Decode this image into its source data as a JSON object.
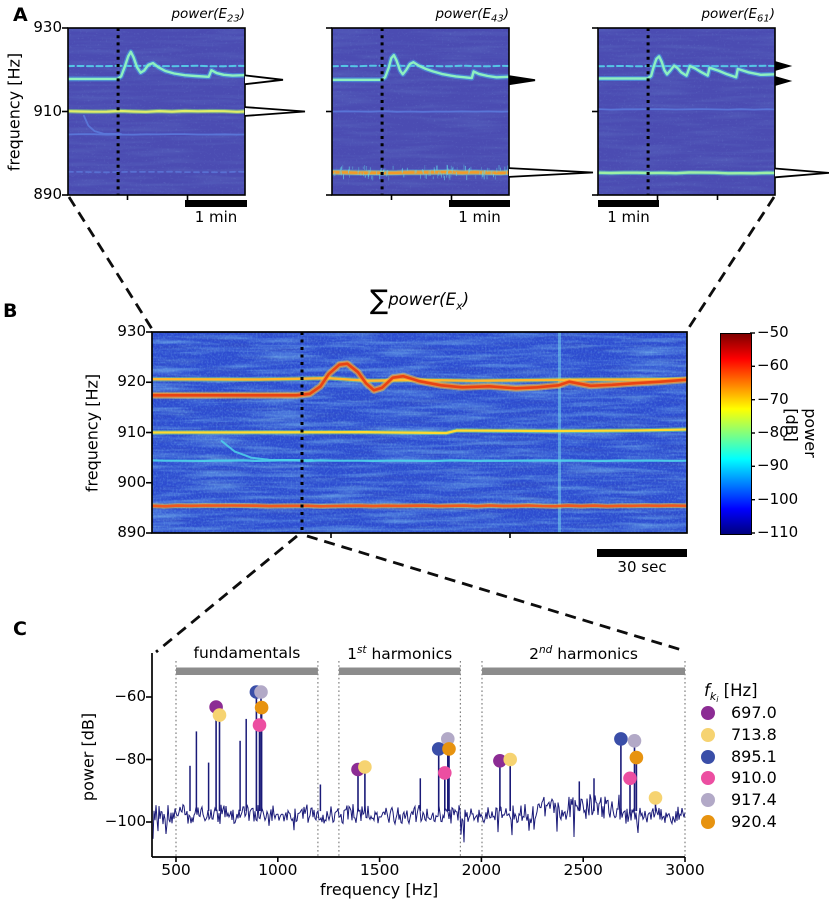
{
  "figure": {
    "panel_labels": {
      "a": "A",
      "b": "B",
      "c": "C"
    }
  },
  "panel_a": {
    "ylabel": "frequency [Hz]",
    "yticks": [
      "930",
      "910",
      "890"
    ],
    "scalebar_label": "1 min",
    "plots": [
      {
        "title_pre": "power(E",
        "title_sub": "23",
        "title_post": ")"
      },
      {
        "title_pre": "power(E",
        "title_sub": "43",
        "title_post": ")"
      },
      {
        "title_pre": "power(E",
        "title_sub": "61",
        "title_post": ")"
      }
    ]
  },
  "panel_b": {
    "title_sigma": "∑",
    "title_pre": "power(E",
    "title_sub": "x",
    "title_post": ")",
    "ylabel": "frequency [Hz]",
    "yticks": [
      "930",
      "920",
      "910",
      "900",
      "890"
    ],
    "scalebar_label": "30 sec",
    "colorbar": {
      "label": "power [dB]",
      "ticks": [
        "−50",
        "−60",
        "−70",
        "−80",
        "−90",
        "−100",
        "−110"
      ]
    }
  },
  "panel_c": {
    "ylabel": "power [dB]",
    "xlabel": "frequency [Hz]",
    "yticks": [
      "−60",
      "−80",
      "−100"
    ],
    "xticks": [
      "500",
      "1000",
      "1500",
      "2000",
      "2500",
      "3000"
    ],
    "legend_title": {
      "base": "f",
      "sub": "k",
      "subsub": "i",
      "unit": " [Hz]"
    }
  },
  "chart_data": {
    "panel_a": {
      "type": "spectrogram",
      "freq_range_hz": [
        890,
        930
      ],
      "time_scalebar": "1 min",
      "event_marker_frac": 0.28,
      "plots": [
        {
          "electrode": "E23",
          "trace": [
            [
              0,
              917.8
            ],
            [
              0.28,
              917.8
            ],
            [
              0.3,
              918.4
            ],
            [
              0.32,
              920.6
            ],
            [
              0.34,
              923.2
            ],
            [
              0.355,
              924.3
            ],
            [
              0.37,
              923.0
            ],
            [
              0.39,
              920.6
            ],
            [
              0.41,
              919.3
            ],
            [
              0.43,
              919.8
            ],
            [
              0.455,
              921.2
            ],
            [
              0.48,
              921.6
            ],
            [
              0.51,
              920.6
            ],
            [
              0.55,
              919.7
            ],
            [
              0.6,
              919.1
            ],
            [
              0.66,
              918.7
            ],
            [
              0.72,
              918.5
            ],
            [
              0.795,
              918.3
            ],
            [
              0.81,
              919.9
            ],
            [
              0.84,
              919.2
            ],
            [
              0.88,
              918.8
            ],
            [
              0.93,
              918.6
            ],
            [
              1,
              918.7
            ]
          ],
          "hook": [
            [
              0.09,
              909.0
            ],
            [
              0.115,
              906.6
            ],
            [
              0.15,
              905.3
            ],
            [
              0.2,
              904.7
            ]
          ],
          "static_lines": [
            {
              "f": 920.9,
              "style": "dash"
            },
            {
              "f": 910.0,
              "style": "brightYG"
            },
            {
              "f": 904.5,
              "style": "faint"
            },
            {
              "f": 895.5,
              "style": "faintdash"
            }
          ],
          "profile_peaks": [
            {
              "f": 917.6,
              "len": 38
            },
            {
              "f": 910.0,
              "len": 60
            }
          ]
        },
        {
          "electrode": "E43",
          "trace": [
            [
              0,
              917.6
            ],
            [
              0.28,
              917.6
            ],
            [
              0.3,
              918.2
            ],
            [
              0.32,
              920.4
            ],
            [
              0.335,
              922.8
            ],
            [
              0.35,
              923.5
            ],
            [
              0.365,
              922.2
            ],
            [
              0.385,
              919.8
            ],
            [
              0.4,
              918.9
            ],
            [
              0.42,
              920.0
            ],
            [
              0.44,
              921.4
            ],
            [
              0.46,
              921.8
            ],
            [
              0.49,
              921.0
            ],
            [
              0.53,
              920.2
            ],
            [
              0.57,
              919.6
            ],
            [
              0.62,
              919.0
            ],
            [
              0.67,
              918.6
            ],
            [
              0.7,
              918.4
            ],
            [
              0.75,
              918.2
            ],
            [
              0.79,
              918.0
            ],
            [
              0.8,
              919.6
            ],
            [
              0.83,
              919.0
            ],
            [
              0.88,
              918.5
            ],
            [
              0.93,
              918.2
            ],
            [
              1,
              918.3
            ]
          ],
          "hook": [],
          "static_lines": [
            {
              "f": 920.9,
              "style": "dash"
            },
            {
              "f": 910.0,
              "style": "faint"
            },
            {
              "f": 895.4,
              "style": "brightOrange"
            }
          ],
          "profile_peaks": [
            {
              "f": 917.5,
              "len": 26
            },
            {
              "f": 895.4,
              "len": 84
            }
          ]
        },
        {
          "electrode": "E61",
          "trace": [
            [
              0,
              917.9
            ],
            [
              0.28,
              917.9
            ],
            [
              0.3,
              918.5
            ],
            [
              0.315,
              920.8
            ],
            [
              0.33,
              922.6
            ],
            [
              0.345,
              923.2
            ],
            [
              0.36,
              921.9
            ],
            [
              0.375,
              919.9
            ],
            [
              0.39,
              918.9
            ],
            [
              0.41,
              919.9
            ],
            [
              0.43,
              921.0
            ],
            [
              0.45,
              920.4
            ],
            [
              0.47,
              919.4
            ],
            [
              0.5,
              918.6
            ],
            [
              0.52,
              920.9
            ],
            [
              0.55,
              920.3
            ],
            [
              0.58,
              919.5
            ],
            [
              0.62,
              918.6
            ],
            [
              0.63,
              920.5
            ],
            [
              0.68,
              919.8
            ],
            [
              0.73,
              918.9
            ],
            [
              0.78,
              918.2
            ],
            [
              0.79,
              920.2
            ],
            [
              0.85,
              919.4
            ],
            [
              0.92,
              918.8
            ],
            [
              1,
              918.9
            ]
          ],
          "hook": [],
          "static_lines": [
            {
              "f": 920.9,
              "style": "dash"
            },
            {
              "f": 910.5,
              "style": "faint"
            },
            {
              "f": 895.3,
              "style": "brightGreen"
            }
          ],
          "profile_peaks": [
            {
              "f": 920.9,
              "len": 14,
              "filled": true
            },
            {
              "f": 917.3,
              "len": 14,
              "filled": true
            },
            {
              "f": 895.3,
              "len": 54
            }
          ]
        }
      ]
    },
    "panel_b": {
      "type": "spectrogram",
      "freq_range_hz": [
        890,
        930
      ],
      "power_range_db": [
        -110,
        -50
      ],
      "time_scalebar": "30 sec",
      "event_marker_frac": 0.28,
      "main_trace": [
        [
          0,
          917.4
        ],
        [
          0.27,
          917.4
        ],
        [
          0.295,
          917.7
        ],
        [
          0.315,
          919.2
        ],
        [
          0.33,
          921.6
        ],
        [
          0.35,
          923.5
        ],
        [
          0.365,
          923.7
        ],
        [
          0.385,
          922.0
        ],
        [
          0.4,
          919.8
        ],
        [
          0.415,
          918.4
        ],
        [
          0.43,
          918.9
        ],
        [
          0.45,
          920.9
        ],
        [
          0.47,
          921.2
        ],
        [
          0.5,
          920.2
        ],
        [
          0.54,
          919.4
        ],
        [
          0.58,
          919.0
        ],
        [
          0.63,
          919.2
        ],
        [
          0.68,
          918.8
        ],
        [
          0.72,
          919.0
        ],
        [
          0.76,
          919.4
        ],
        [
          0.78,
          920.1
        ],
        [
          0.82,
          919.3
        ],
        [
          0.86,
          919.5
        ],
        [
          0.9,
          919.8
        ],
        [
          0.95,
          920.1
        ],
        [
          1,
          920.5
        ]
      ],
      "yellow_trace": [
        [
          0,
          920.6
        ],
        [
          0.2,
          920.55
        ],
        [
          0.33,
          920.8
        ],
        [
          0.4,
          920.3
        ],
        [
          0.5,
          920.45
        ],
        [
          0.6,
          920.3
        ],
        [
          0.7,
          920.4
        ],
        [
          0.8,
          920.5
        ],
        [
          0.9,
          920.55
        ],
        [
          1,
          920.6
        ]
      ],
      "line_910_trace": [
        [
          0,
          910.0
        ],
        [
          0.4,
          910.05
        ],
        [
          0.55,
          909.9
        ],
        [
          0.57,
          910.4
        ],
        [
          0.75,
          910.3
        ],
        [
          0.9,
          910.4
        ],
        [
          1,
          910.6
        ]
      ],
      "line_904_hz": 904.4,
      "line_895_hz": 895.4,
      "hook": [
        [
          0.13,
          908.3
        ],
        [
          0.155,
          906.2
        ],
        [
          0.185,
          905.0
        ],
        [
          0.22,
          904.55
        ]
      ]
    },
    "panel_c": {
      "type": "line",
      "x_range_hz": [
        380,
        3010
      ],
      "y_range_db": [
        -112,
        -46
      ],
      "noise_floor_db": -97.6,
      "regions": [
        {
          "label_pre": "fundamentals",
          "label_sup": "",
          "label_post": "",
          "from_hz": 500,
          "to_hz": 1197
        },
        {
          "label_pre": "1",
          "label_sup": "st",
          "label_post": " harmonics",
          "from_hz": 1300,
          "to_hz": 1897
        },
        {
          "label_pre": "2",
          "label_sup": "nd",
          "label_post": " harmonics",
          "from_hz": 2003,
          "to_hz": 3000
        }
      ],
      "legend": [
        {
          "value": "697.0",
          "color": "#8c2c94"
        },
        {
          "value": "713.8",
          "color": "#f6d371"
        },
        {
          "value": "895.1",
          "color": "#3a4ea8"
        },
        {
          "value": "910.0",
          "color": "#ec4ea1"
        },
        {
          "value": "917.4",
          "color": "#b2a9c7"
        },
        {
          "value": "920.4",
          "color": "#e79310"
        }
      ],
      "markers": [
        {
          "f": 697.0,
          "db": -63.2,
          "c": 0
        },
        {
          "f": 713.8,
          "db": -65.8,
          "c": 1
        },
        {
          "f": 895.1,
          "db": -58.4,
          "c": 2
        },
        {
          "f": 910.0,
          "db": -69.0,
          "c": 3
        },
        {
          "f": 917.4,
          "db": -58.4,
          "c": 4
        },
        {
          "f": 920.4,
          "db": -63.4,
          "c": 5
        },
        {
          "f": 1394.0,
          "db": -83.2,
          "c": 0
        },
        {
          "f": 1427.6,
          "db": -82.4,
          "c": 1
        },
        {
          "f": 1790.2,
          "db": -76.6,
          "c": 2
        },
        {
          "f": 1820.0,
          "db": -84.3,
          "c": 3
        },
        {
          "f": 1834.8,
          "db": -73.4,
          "c": 4
        },
        {
          "f": 1840.8,
          "db": -76.6,
          "c": 5
        },
        {
          "f": 2091.0,
          "db": -80.4,
          "c": 0
        },
        {
          "f": 2141.4,
          "db": -80.0,
          "c": 1
        },
        {
          "f": 2685.3,
          "db": -73.4,
          "c": 2
        },
        {
          "f": 2730.0,
          "db": -86.0,
          "c": 3
        },
        {
          "f": 2752.2,
          "db": -74.0,
          "c": 4
        },
        {
          "f": 2761.2,
          "db": -79.4,
          "c": 5
        },
        {
          "f": 2855.2,
          "db": -92.3,
          "c": 1
        }
      ],
      "extra_peaks": [
        {
          "f": 569,
          "db": -82
        },
        {
          "f": 600,
          "db": -71
        },
        {
          "f": 660,
          "db": -81
        },
        {
          "f": 815,
          "db": -74
        },
        {
          "f": 845,
          "db": -67
        },
        {
          "f": 1209,
          "db": -88
        },
        {
          "f": 1700,
          "db": -86
        },
        {
          "f": 2481,
          "db": -87
        },
        {
          "f": 2553,
          "db": -86
        }
      ]
    }
  }
}
